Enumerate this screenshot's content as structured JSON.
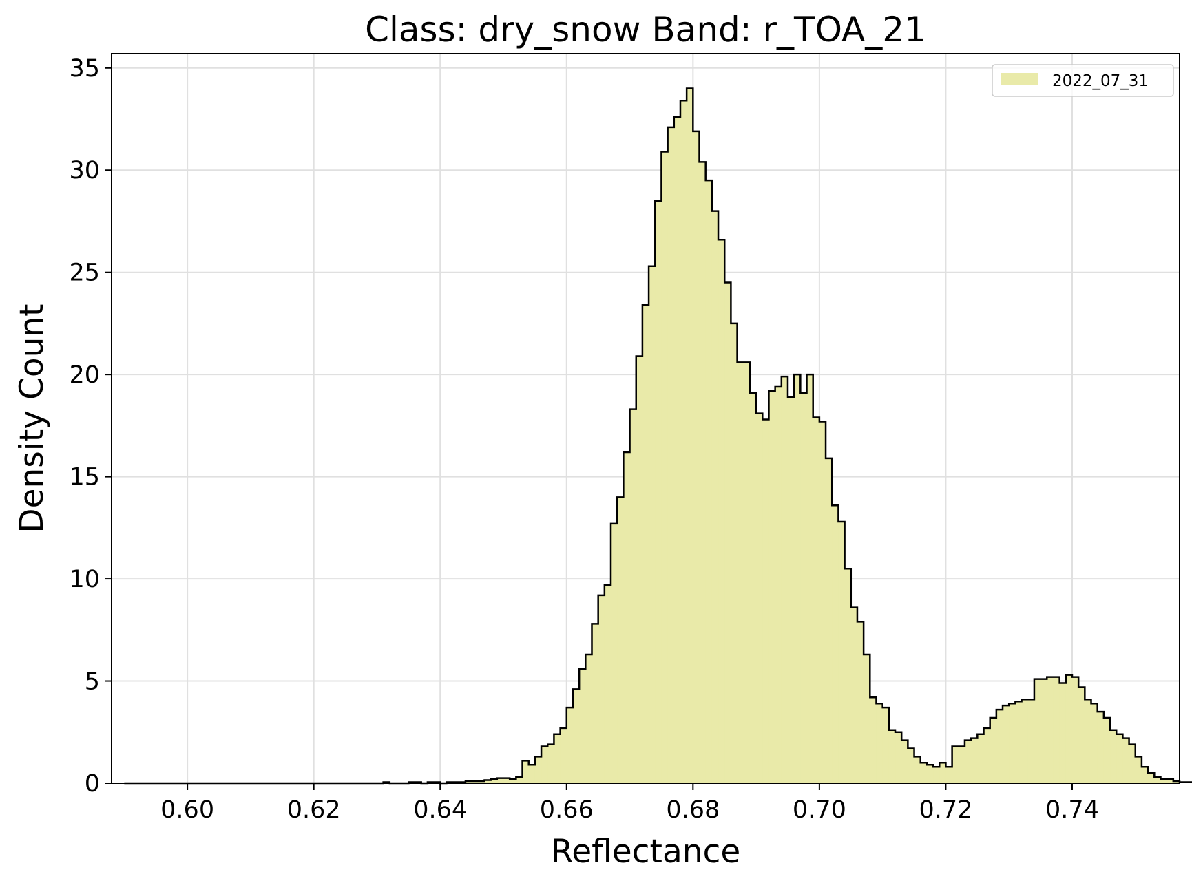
{
  "chart_data": {
    "type": "histogram",
    "title": "Class: dry_snow Band: r_TOA_21",
    "xlabel": "Reflectance",
    "ylabel": "Density Count",
    "xlim": [
      0.588,
      0.757
    ],
    "ylim": [
      0,
      35.7
    ],
    "xticks": [
      0.6,
      0.62,
      0.64,
      0.66,
      0.68,
      0.7,
      0.72,
      0.74
    ],
    "xtick_labels": [
      "0.60",
      "0.62",
      "0.64",
      "0.66",
      "0.68",
      "0.70",
      "0.72",
      "0.74"
    ],
    "yticks": [
      0,
      5,
      10,
      15,
      20,
      25,
      30,
      35
    ],
    "ytick_labels": [
      "0",
      "5",
      "10",
      "15",
      "20",
      "25",
      "30",
      "35"
    ],
    "grid": true,
    "legend_position": "top-right",
    "series": [
      {
        "name": "2022_07_31",
        "fill": "#e9eaa9",
        "edge": "#000000",
        "bin_start": 0.59,
        "bin_width": 0.001,
        "values": [
          0,
          0,
          0,
          0,
          0,
          0,
          0,
          0,
          0,
          0,
          0,
          0,
          0,
          0,
          0,
          0,
          0,
          0,
          0,
          0,
          0,
          0,
          0,
          0,
          0,
          0,
          0,
          0,
          0,
          0,
          0,
          0,
          0,
          0,
          0,
          0,
          0,
          0,
          0,
          0,
          0,
          0.05,
          0,
          0,
          0,
          0.05,
          0.05,
          0,
          0.05,
          0.05,
          0,
          0.05,
          0.05,
          0.05,
          0.1,
          0.1,
          0.1,
          0.15,
          0.2,
          0.25,
          0.25,
          0.2,
          0.3,
          1.1,
          0.9,
          1.3,
          1.8,
          1.9,
          2.4,
          2.7,
          3.7,
          4.6,
          5.6,
          6.3,
          7.8,
          9.2,
          9.7,
          12.7,
          14.0,
          16.2,
          18.3,
          20.9,
          23.4,
          25.3,
          28.5,
          30.9,
          32.1,
          32.6,
          33.4,
          34.0,
          31.9,
          30.4,
          29.5,
          28.0,
          26.6,
          24.5,
          22.5,
          20.6,
          20.6,
          19.1,
          18.1,
          17.8,
          19.2,
          19.4,
          19.9,
          18.9,
          20.0,
          19.1,
          20.0,
          17.9,
          17.7,
          15.9,
          13.6,
          12.8,
          10.5,
          8.6,
          7.9,
          6.3,
          4.2,
          3.9,
          3.7,
          2.6,
          2.5,
          2.1,
          1.7,
          1.3,
          1.0,
          0.9,
          0.8,
          1.0,
          0.8,
          1.8,
          1.8,
          2.1,
          2.2,
          2.4,
          2.7,
          3.2,
          3.6,
          3.8,
          3.9,
          4.0,
          4.1,
          4.1,
          5.1,
          5.1,
          5.2,
          5.2,
          4.9,
          5.3,
          5.2,
          4.7,
          4.1,
          3.9,
          3.5,
          3.2,
          2.6,
          2.4,
          2.2,
          1.9,
          1.3,
          0.8,
          0.5,
          0.3,
          0.2,
          0.2,
          0.1,
          0.05,
          0.05
        ]
      }
    ]
  }
}
